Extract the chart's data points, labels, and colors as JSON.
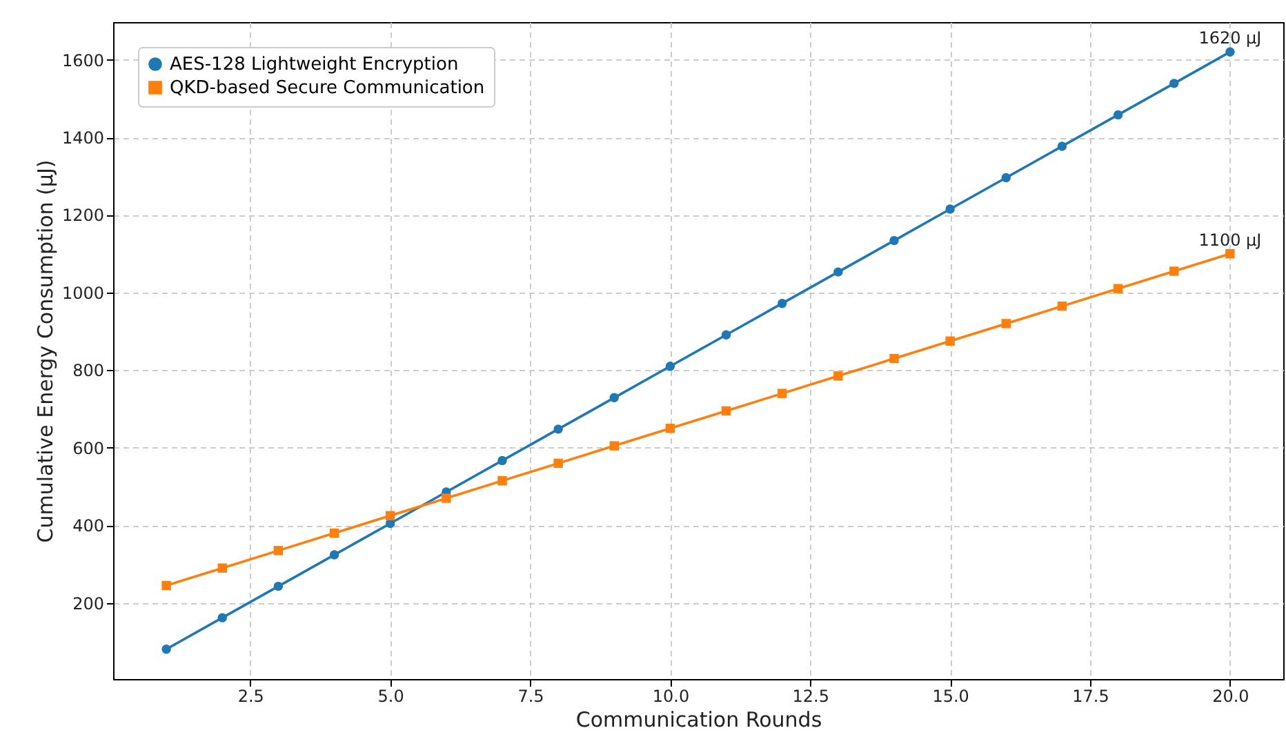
{
  "chart_data": {
    "type": "line",
    "xlabel": "Communication Rounds",
    "ylabel": "Cumulative Energy Consumption (μJ)",
    "x": [
      1,
      2,
      3,
      4,
      5,
      6,
      7,
      8,
      9,
      10,
      11,
      12,
      13,
      14,
      15,
      16,
      17,
      18,
      19,
      20
    ],
    "series": [
      {
        "name": "AES-128 Lightweight Encryption",
        "color": "#1f77b4",
        "marker": "circle",
        "values": [
          81,
          162,
          243,
          324,
          405,
          486,
          567,
          648,
          729,
          810,
          891,
          972,
          1053,
          1134,
          1215,
          1296,
          1377,
          1458,
          1539,
          1620
        ]
      },
      {
        "name": "QKD-based Secure Communication",
        "color": "#ff7f0e",
        "marker": "square",
        "values": [
          245,
          290,
          335,
          380,
          425,
          470,
          515,
          560,
          605,
          650,
          695,
          740,
          785,
          830,
          875,
          920,
          965,
          1010,
          1055,
          1100
        ]
      }
    ],
    "annotations": [
      {
        "text": "1620 μJ",
        "x": 20,
        "y": 1620
      },
      {
        "text": "1100 μJ",
        "x": 20,
        "y": 1100
      }
    ],
    "xlim": [
      0.05,
      20.95
    ],
    "ylim": [
      4,
      1697
    ],
    "xticks": [
      {
        "value": 2.5,
        "label": "2.5"
      },
      {
        "value": 5,
        "label": "5.0"
      },
      {
        "value": 7.5,
        "label": "7.5"
      },
      {
        "value": 10,
        "label": "10.0"
      },
      {
        "value": 12.5,
        "label": "12.5"
      },
      {
        "value": 15,
        "label": "15.0"
      },
      {
        "value": 17.5,
        "label": "17.5"
      },
      {
        "value": 20,
        "label": "20.0"
      }
    ],
    "yticks": [
      200,
      400,
      600,
      800,
      1000,
      1200,
      1400,
      1600
    ],
    "grid": true,
    "legend": "top left",
    "line_style": "solid"
  }
}
